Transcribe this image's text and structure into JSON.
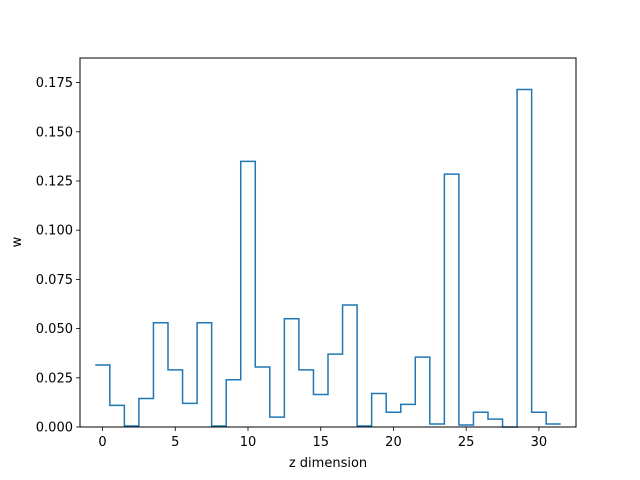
{
  "chart_data": {
    "type": "line",
    "style": "step-histogram",
    "title": "",
    "xlabel": "z dimension",
    "ylabel": "w",
    "xlim": [
      -1.55,
      32.55
    ],
    "ylim": [
      0,
      0.1875
    ],
    "xticks": [
      0,
      5,
      10,
      15,
      20,
      25,
      30
    ],
    "yticks": [
      0.0,
      0.025,
      0.05,
      0.075,
      0.1,
      0.125,
      0.15,
      0.175
    ],
    "ytick_labels": [
      "0.000",
      "0.025",
      "0.050",
      "0.075",
      "0.100",
      "0.125",
      "0.150",
      "0.175"
    ],
    "grid": false,
    "legend": "none",
    "line_color": "#1f77b4",
    "series": [
      {
        "x": [
          0,
          1,
          2,
          3,
          4,
          5,
          6,
          7,
          8,
          9,
          10,
          11,
          12,
          13,
          14,
          15,
          16,
          17,
          18,
          19,
          20,
          21,
          22,
          23,
          24,
          25,
          26,
          27,
          28,
          29,
          30,
          31
        ],
        "values": [
          0.0315,
          0.011,
          0.0005,
          0.0145,
          0.053,
          0.029,
          0.012,
          0.053,
          0.0005,
          0.024,
          0.135,
          0.0305,
          0.005,
          0.055,
          0.029,
          0.0165,
          0.037,
          0.062,
          0.0005,
          0.017,
          0.0075,
          0.0115,
          0.0355,
          0.0015,
          0.1285,
          0.001,
          0.0075,
          0.004,
          0.0,
          0.1715,
          0.0075,
          0.0015
        ]
      }
    ]
  }
}
